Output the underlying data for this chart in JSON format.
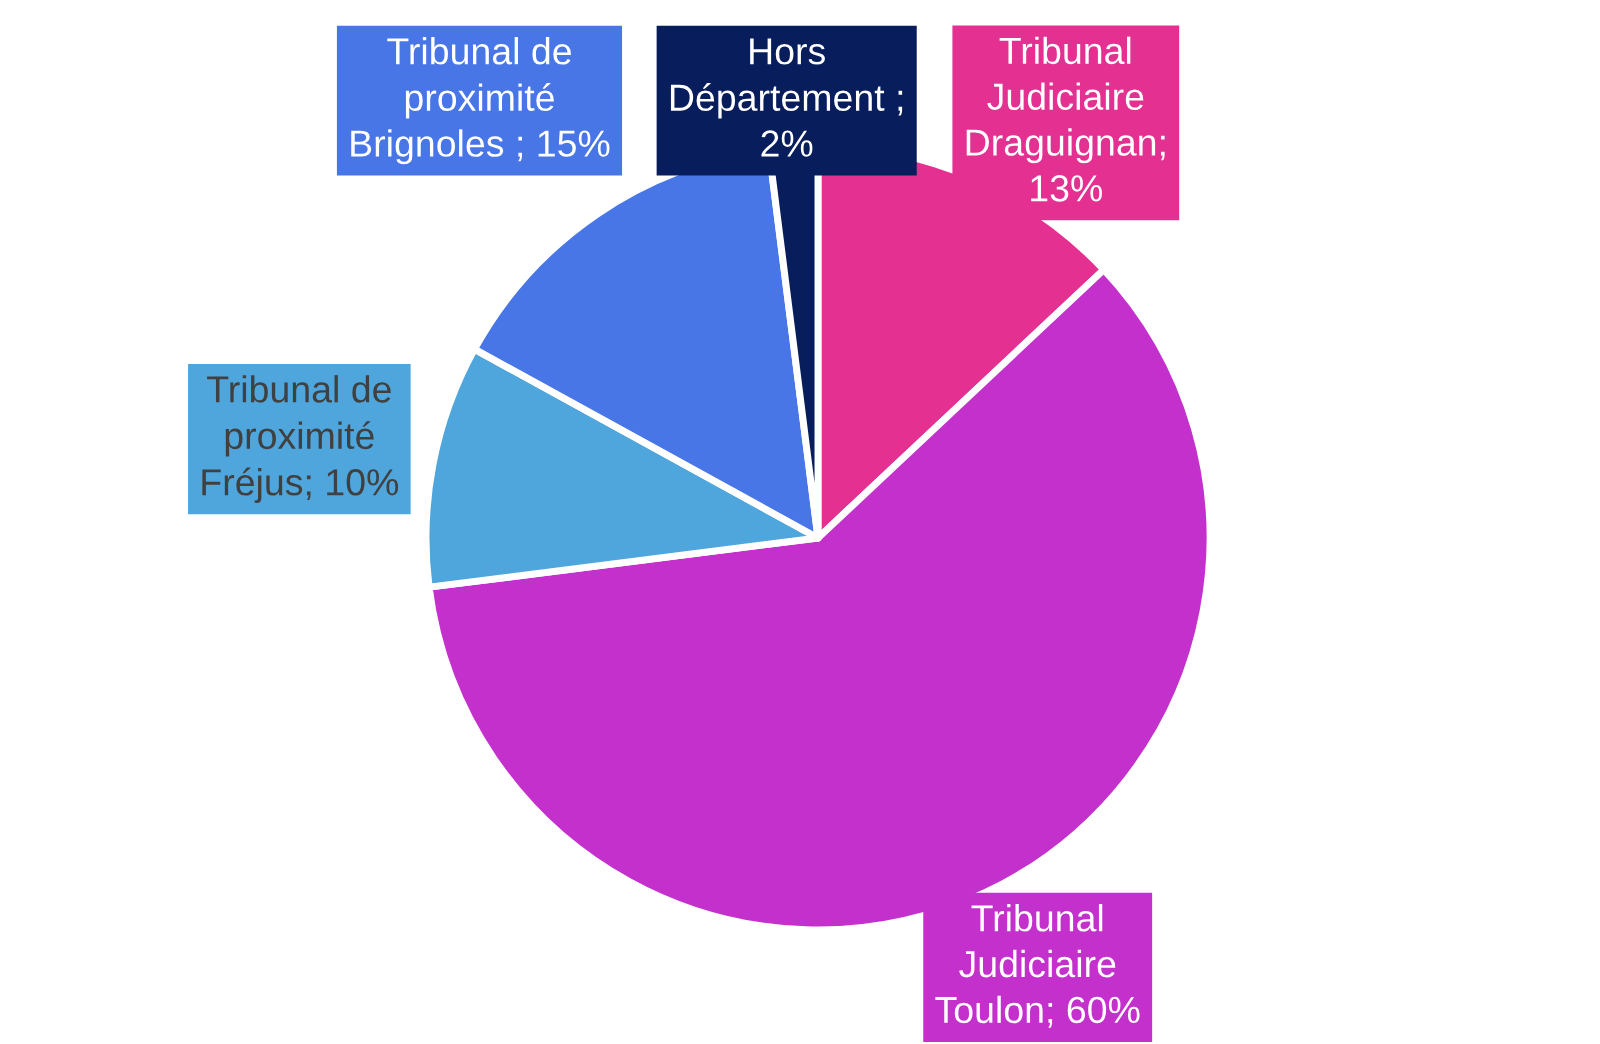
{
  "chart_data": {
    "type": "pie",
    "categories": [
      "Tribunal Judiciaire Draguignan",
      "Tribunal Judiciaire Toulon",
      "Tribunal de proximité Fréjus",
      "Tribunal de proximité Brignoles",
      "Hors Département"
    ],
    "values": [
      13,
      60,
      10,
      15,
      2
    ],
    "colors": [
      "#e33091",
      "#c430cc",
      "#4ea6dc",
      "#4876e6",
      "#081e5c"
    ],
    "value_labels": [
      "; 13%",
      "; 60%",
      "; 10%",
      " ; 15%",
      " ; 2%"
    ]
  }
}
